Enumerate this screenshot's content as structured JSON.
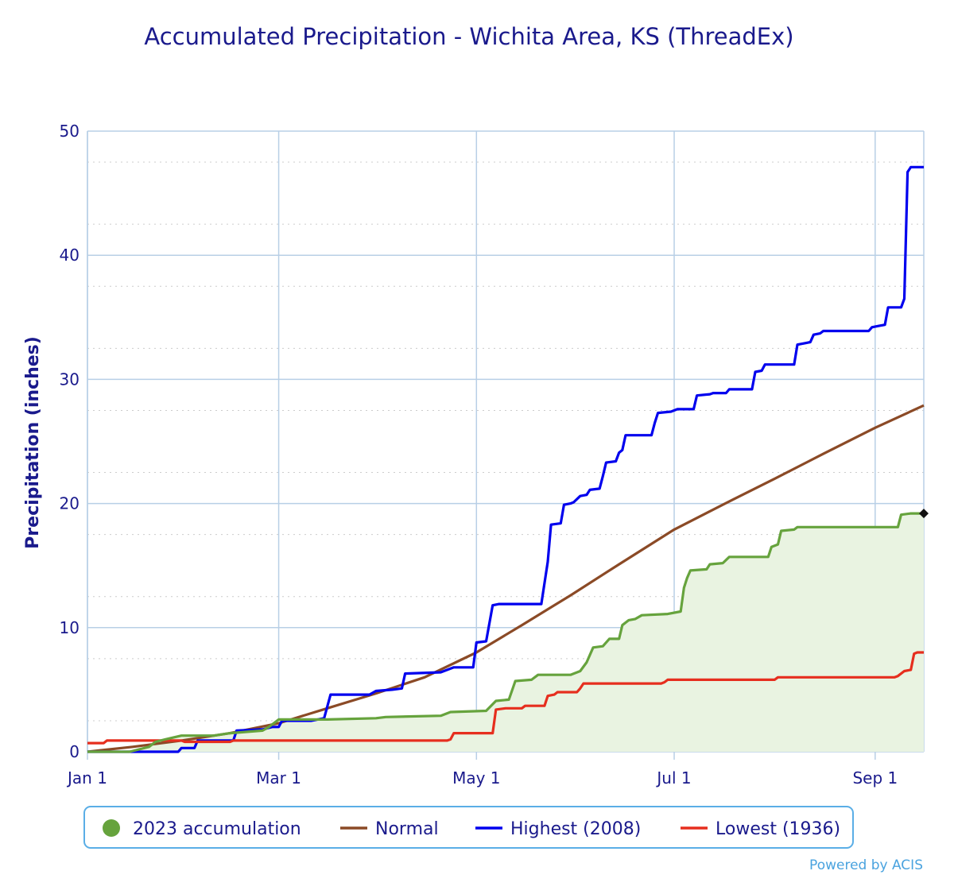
{
  "chart_data": {
    "type": "line",
    "title": "Accumulated Precipitation - Wichita Area, KS (ThreadEx)",
    "ylabel": "Precipitation (inches)",
    "xlabel": "",
    "ylim": [
      0,
      50
    ],
    "yticks": [
      0,
      10,
      20,
      30,
      40,
      50
    ],
    "xticks": [
      {
        "label": "Jan 1",
        "day": 1
      },
      {
        "label": "Mar 1",
        "day": 60
      },
      {
        "label": "May 1",
        "day": 121
      },
      {
        "label": "Jul 1",
        "day": 182
      },
      {
        "label": "Sep 1",
        "day": 244
      }
    ],
    "xlim_day": [
      1,
      259
    ],
    "grid": true,
    "legend_position": "bottom",
    "series": [
      {
        "name": "2023 accumulation",
        "color": "#66a33d",
        "fill": "#e9f3e1",
        "marker": "dot",
        "points": [
          [
            1,
            0
          ],
          [
            14,
            0
          ],
          [
            20,
            0.4
          ],
          [
            22,
            0.8
          ],
          [
            25,
            1.0
          ],
          [
            30,
            1.3
          ],
          [
            40,
            1.3
          ],
          [
            45,
            1.5
          ],
          [
            50,
            1.6
          ],
          [
            55,
            1.7
          ],
          [
            57,
            2.0
          ],
          [
            60,
            2.6
          ],
          [
            75,
            2.6
          ],
          [
            90,
            2.7
          ],
          [
            93,
            2.8
          ],
          [
            110,
            2.9
          ],
          [
            113,
            3.2
          ],
          [
            124,
            3.3
          ],
          [
            127,
            4.1
          ],
          [
            131,
            4.2
          ],
          [
            133,
            5.7
          ],
          [
            138,
            5.8
          ],
          [
            140,
            6.2
          ],
          [
            150,
            6.2
          ],
          [
            153,
            6.5
          ],
          [
            155,
            7.2
          ],
          [
            157,
            8.4
          ],
          [
            160,
            8.5
          ],
          [
            162,
            9.1
          ],
          [
            165,
            9.1
          ],
          [
            166,
            10.2
          ],
          [
            168,
            10.6
          ],
          [
            170,
            10.7
          ],
          [
            172,
            11.0
          ],
          [
            180,
            11.1
          ],
          [
            184,
            11.3
          ],
          [
            185,
            13.2
          ],
          [
            186,
            14.0
          ],
          [
            187,
            14.6
          ],
          [
            192,
            14.7
          ],
          [
            193,
            15.1
          ],
          [
            197,
            15.2
          ],
          [
            199,
            15.7
          ],
          [
            211,
            15.7
          ],
          [
            212,
            16.5
          ],
          [
            214,
            16.7
          ],
          [
            215,
            17.8
          ],
          [
            219,
            17.9
          ],
          [
            220,
            18.1
          ],
          [
            251,
            18.1
          ],
          [
            252,
            19.1
          ],
          [
            255,
            19.2
          ],
          [
            259,
            19.2
          ]
        ],
        "last_point": [
          259,
          19.2
        ]
      },
      {
        "name": "Normal",
        "color": "#8b4a26",
        "points": [
          [
            1,
            0
          ],
          [
            15,
            0.4
          ],
          [
            30,
            0.9
          ],
          [
            45,
            1.5
          ],
          [
            60,
            2.3
          ],
          [
            75,
            3.5
          ],
          [
            90,
            4.7
          ],
          [
            105,
            6.0
          ],
          [
            121,
            8.0
          ],
          [
            135,
            10.2
          ],
          [
            150,
            12.6
          ],
          [
            165,
            15.1
          ],
          [
            182,
            17.9
          ],
          [
            200,
            20.3
          ],
          [
            213,
            22.0
          ],
          [
            228,
            24.0
          ],
          [
            244,
            26.1
          ],
          [
            259,
            27.9
          ]
        ]
      },
      {
        "name": "Highest (2008)",
        "color": "#0000ee",
        "points": [
          [
            1,
            0
          ],
          [
            29,
            0
          ],
          [
            30,
            0.3
          ],
          [
            34,
            0.3
          ],
          [
            35,
            0.9
          ],
          [
            46,
            0.9
          ],
          [
            47,
            1.7
          ],
          [
            55,
            1.8
          ],
          [
            58,
            2.0
          ],
          [
            60,
            2.0
          ],
          [
            61,
            2.5
          ],
          [
            70,
            2.5
          ],
          [
            74,
            2.7
          ],
          [
            76,
            4.6
          ],
          [
            88,
            4.6
          ],
          [
            90,
            4.9
          ],
          [
            95,
            5.0
          ],
          [
            98,
            5.1
          ],
          [
            99,
            6.3
          ],
          [
            110,
            6.4
          ],
          [
            112,
            6.6
          ],
          [
            114,
            6.8
          ],
          [
            120,
            6.8
          ],
          [
            121,
            8.8
          ],
          [
            124,
            8.9
          ],
          [
            126,
            11.8
          ],
          [
            128,
            11.9
          ],
          [
            141,
            11.9
          ],
          [
            143,
            15.3
          ],
          [
            144,
            18.3
          ],
          [
            147,
            18.4
          ],
          [
            148,
            19.9
          ],
          [
            150,
            20.0
          ],
          [
            151,
            20.1
          ],
          [
            153,
            20.6
          ],
          [
            155,
            20.7
          ],
          [
            156,
            21.1
          ],
          [
            159,
            21.2
          ],
          [
            160,
            22.2
          ],
          [
            161,
            23.3
          ],
          [
            164,
            23.4
          ],
          [
            165,
            24.1
          ],
          [
            166,
            24.3
          ],
          [
            167,
            25.5
          ],
          [
            175,
            25.5
          ],
          [
            176,
            26.5
          ],
          [
            177,
            27.3
          ],
          [
            181,
            27.4
          ],
          [
            183,
            27.6
          ],
          [
            188,
            27.6
          ],
          [
            189,
            28.7
          ],
          [
            193,
            28.8
          ],
          [
            194,
            28.9
          ],
          [
            198,
            28.9
          ],
          [
            199,
            29.2
          ],
          [
            206,
            29.2
          ],
          [
            207,
            30.6
          ],
          [
            209,
            30.7
          ],
          [
            210,
            31.2
          ],
          [
            219,
            31.2
          ],
          [
            220,
            32.8
          ],
          [
            224,
            33.0
          ],
          [
            225,
            33.6
          ],
          [
            227,
            33.7
          ],
          [
            228,
            33.9
          ],
          [
            242,
            33.9
          ],
          [
            243,
            34.2
          ],
          [
            245,
            34.3
          ],
          [
            247,
            34.4
          ],
          [
            248,
            35.8
          ],
          [
            252,
            35.8
          ],
          [
            253,
            36.5
          ],
          [
            254,
            46.7
          ],
          [
            255,
            47.1
          ],
          [
            259,
            47.1
          ]
        ]
      },
      {
        "name": "Lowest (1936)",
        "color": "#e62e1e",
        "points": [
          [
            1,
            0.7
          ],
          [
            6,
            0.7
          ],
          [
            7,
            0.9
          ],
          [
            30,
            0.9
          ],
          [
            31,
            0.8
          ],
          [
            45,
            0.8
          ],
          [
            46,
            0.9
          ],
          [
            112,
            0.9
          ],
          [
            113,
            1.0
          ],
          [
            114,
            1.5
          ],
          [
            126,
            1.5
          ],
          [
            127,
            3.4
          ],
          [
            130,
            3.5
          ],
          [
            135,
            3.5
          ],
          [
            136,
            3.7
          ],
          [
            142,
            3.7
          ],
          [
            143,
            4.5
          ],
          [
            145,
            4.6
          ],
          [
            146,
            4.8
          ],
          [
            152,
            4.8
          ],
          [
            153,
            5.1
          ],
          [
            154,
            5.5
          ],
          [
            178,
            5.5
          ],
          [
            179,
            5.6
          ],
          [
            180,
            5.8
          ],
          [
            213,
            5.8
          ],
          [
            214,
            6.0
          ],
          [
            250,
            6.0
          ],
          [
            251,
            6.1
          ],
          [
            253,
            6.5
          ],
          [
            255,
            6.6
          ],
          [
            256,
            7.9
          ],
          [
            257,
            8.0
          ],
          [
            259,
            8.0
          ]
        ]
      }
    ]
  },
  "credit": "Powered by ACIS"
}
